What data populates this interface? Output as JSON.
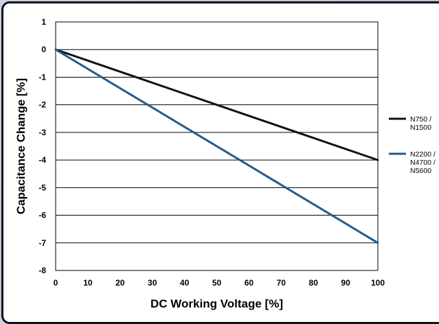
{
  "chart_data": {
    "type": "line",
    "xlabel": "DC Working Voltage [%]",
    "ylabel": "Capacitance Change [%]",
    "xlim": [
      0,
      100
    ],
    "ylim": [
      -8,
      1
    ],
    "x_ticks": [
      "0",
      "10",
      "20",
      "30",
      "40",
      "50",
      "60",
      "70",
      "80",
      "90",
      "100"
    ],
    "y_ticks": [
      "1",
      "0",
      "-1",
      "-2",
      "-3",
      "-4",
      "-5",
      "-6",
      "-7",
      "-8"
    ],
    "grid": "horizontal",
    "legend_position": "right",
    "series": [
      {
        "name_lines": [
          "N750 /",
          "N1500"
        ],
        "color": "#111111",
        "x": [
          0,
          100
        ],
        "y": [
          0,
          -4
        ]
      },
      {
        "name_lines": [
          "N2200 /",
          "N4700 /",
          "N5600"
        ],
        "color": "#1f5b8e",
        "x": [
          0,
          100
        ],
        "y": [
          0,
          -7
        ]
      }
    ]
  }
}
